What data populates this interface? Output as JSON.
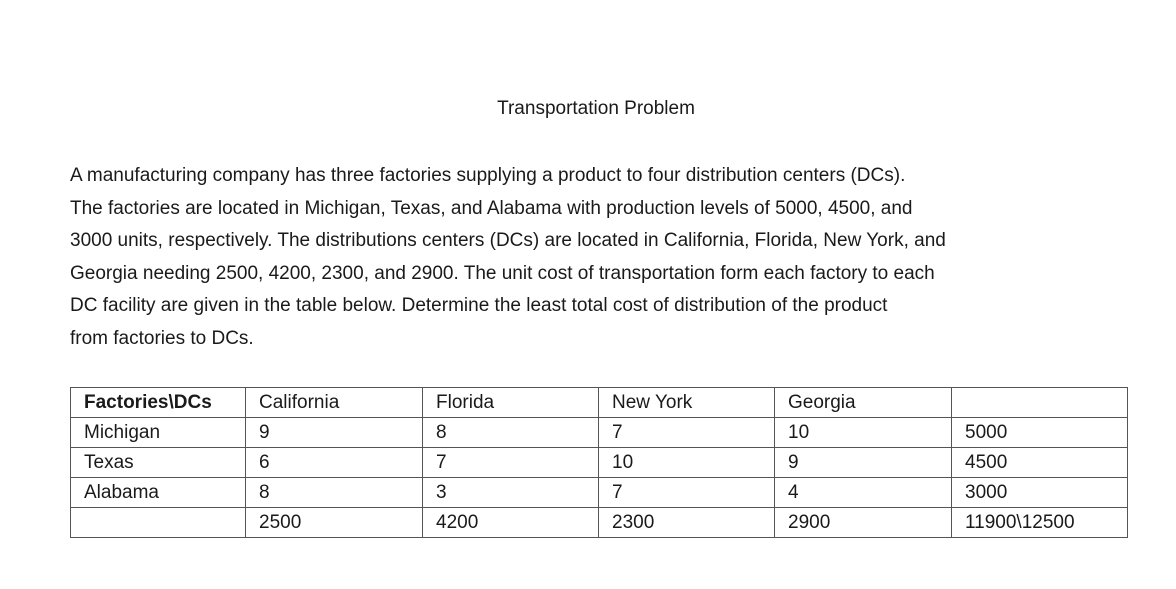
{
  "document": {
    "title": "Transportation Problem",
    "paragraph_lines": [
      "A manufacturing company has three factories supplying a product to four distribution centers (DCs).",
      "The factories are located in Michigan, Texas, and Alabama with production levels of 5000, 4500, and",
      "3000 units, respectively.  The distributions centers (DCs) are located in California, Florida, New York, and",
      "Georgia needing 2500, 4200, 2300, and 2900.  The unit cost of transportation form each factory to each",
      "DC facility are given in the table below.  Determine the least total cost of distribution of the product",
      "from factories to DCs."
    ]
  },
  "table": {
    "header": [
      "Factories\\DCs",
      "California",
      "Florida",
      "New York",
      "Georgia",
      ""
    ],
    "rows": [
      {
        "factory": "Michigan",
        "costs": [
          "9",
          "8",
          "7",
          "10"
        ],
        "supply": "5000"
      },
      {
        "factory": "Texas",
        "costs": [
          "6",
          "7",
          "10",
          "9"
        ],
        "supply": "4500"
      },
      {
        "factory": "Alabama",
        "costs": [
          "8",
          "3",
          "7",
          "4"
        ],
        "supply": "3000"
      }
    ],
    "demand_row": {
      "label": "",
      "demands": [
        "2500",
        "4200",
        "2300",
        "2900"
      ],
      "total": "11900\\12500"
    }
  }
}
